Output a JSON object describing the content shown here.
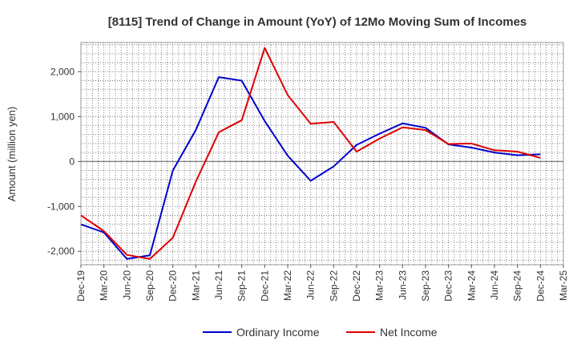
{
  "chart_data": {
    "type": "line",
    "title": "[8115]  Trend of Change in Amount (YoY) of 12Mo Moving Sum of Incomes",
    "xlabel": "",
    "ylabel": "Amount (million yen)",
    "ylim": [
      -2300,
      2650
    ],
    "yticks": [
      2000,
      1000,
      0,
      -1000,
      -2000
    ],
    "ytick_labels": [
      "2,000",
      "1,000",
      "0",
      "-1,000",
      "-2,000"
    ],
    "categories": [
      "Dec-19",
      "Mar-20",
      "Jun-20",
      "Sep-20",
      "Dec-20",
      "Mar-21",
      "Jun-21",
      "Sep-21",
      "Dec-21",
      "Mar-22",
      "Jun-22",
      "Sep-22",
      "Dec-22",
      "Mar-23",
      "Jun-23",
      "Sep-23",
      "Dec-23",
      "Mar-24",
      "Jun-24",
      "Sep-24",
      "Dec-24",
      "Mar-25"
    ],
    "grid": true,
    "legend_position": "bottom-center",
    "series": [
      {
        "name": "Ordinary Income",
        "color": "#0000cc",
        "values": [
          -1400,
          -1580,
          -2170,
          -2090,
          -200,
          700,
          1880,
          1800,
          900,
          130,
          -430,
          -110,
          370,
          620,
          850,
          750,
          380,
          310,
          200,
          140,
          160,
          null
        ]
      },
      {
        "name": "Net Income",
        "color": "#dd0000",
        "values": [
          -1200,
          -1550,
          -2080,
          -2170,
          -1700,
          -450,
          650,
          920,
          2530,
          1480,
          840,
          880,
          220,
          510,
          760,
          700,
          390,
          400,
          250,
          220,
          80,
          null
        ]
      }
    ]
  }
}
